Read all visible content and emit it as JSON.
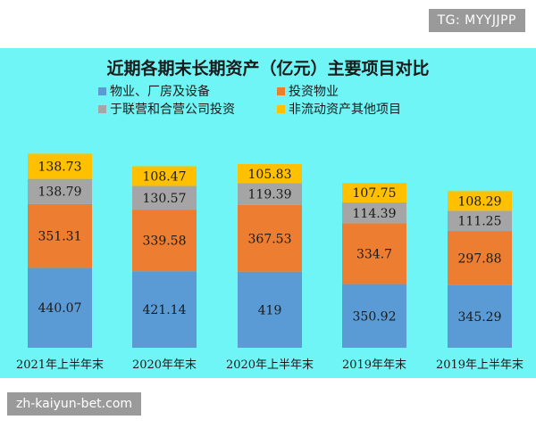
{
  "badge": {
    "text": "TG: MYYJJPP"
  },
  "watermark": {
    "text": "zh-kaiyun-bet.com"
  },
  "chart_data": {
    "type": "bar",
    "stacked": true,
    "title": "近期各期末长期资产（亿元）主要项目对比",
    "categories": [
      "2021年上半年末",
      "2020年年末",
      "2020年上半年末",
      "2019年年末",
      "2019年上半年末"
    ],
    "series": [
      {
        "name": "物业、厂房及设备",
        "color": "#5b9bd5",
        "values": [
          440.07,
          421.14,
          419,
          350.92,
          345.29
        ],
        "labels": [
          "440.07",
          "421.14",
          "419",
          "350.92",
          "345.29"
        ]
      },
      {
        "name": "投资物业",
        "color": "#ed7d31",
        "values": [
          351.31,
          339.58,
          367.53,
          334.7,
          297.88
        ],
        "labels": [
          "351.31",
          "339.58",
          "367.53",
          "334.7",
          "297.88"
        ]
      },
      {
        "name": "于联营和合营公司投资",
        "color": "#a5a5a5",
        "values": [
          138.79,
          130.57,
          119.39,
          114.39,
          111.25
        ],
        "labels": [
          "138.79",
          "130.57",
          "119.39",
          "114.39",
          "111.25"
        ]
      },
      {
        "name": "非流动资产其他项目",
        "color": "#ffc000",
        "values": [
          138.73,
          108.47,
          105.83,
          107.75,
          108.29
        ],
        "labels": [
          "138.73",
          "108.47",
          "105.83",
          "107.75",
          "108.29"
        ]
      }
    ],
    "legend_position": "top",
    "grid": false
  }
}
